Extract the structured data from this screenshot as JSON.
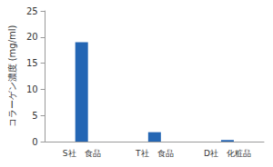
{
  "chart_data": {
    "type": "bar",
    "y_label": "コラーゲン濃度 (mg/ml)",
    "categories": [
      "S社　食品",
      "T社　食品",
      "D社　化粧品"
    ],
    "values": [
      19,
      1.8,
      0.3
    ],
    "color": "#2466b4",
    "ylim": [
      0,
      25
    ],
    "yticks": [
      0,
      5,
      10,
      15,
      20,
      25
    ],
    "grid": false
  }
}
